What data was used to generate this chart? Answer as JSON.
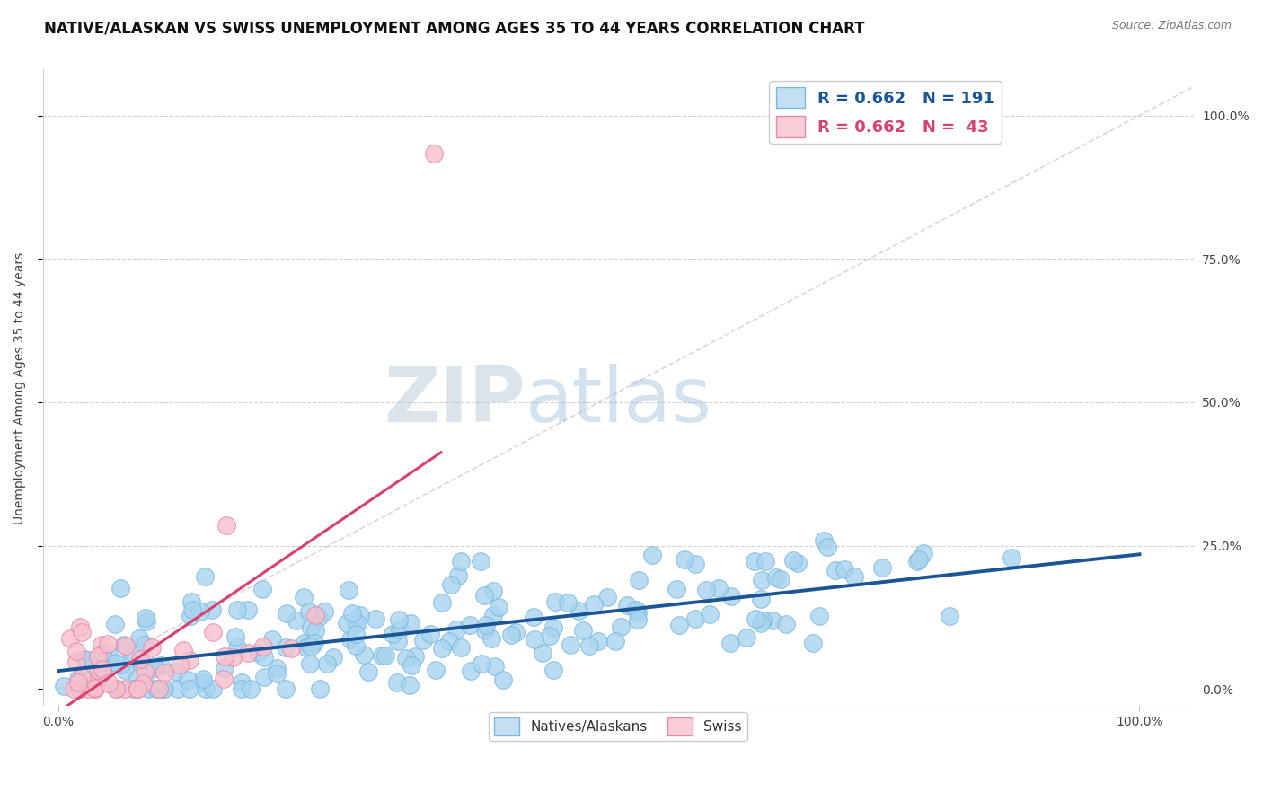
{
  "title": "NATIVE/ALASKAN VS SWISS UNEMPLOYMENT AMONG AGES 35 TO 44 YEARS CORRELATION CHART",
  "source": "Source: ZipAtlas.com",
  "ylabel": "Unemployment Among Ages 35 to 44 years",
  "y_tick_labels": [
    "0.0%",
    "25.0%",
    "50.0%",
    "75.0%",
    "100.0%"
  ],
  "y_tick_positions": [
    0,
    0.25,
    0.5,
    0.75,
    1.0
  ],
  "xlim": [
    -0.015,
    1.05
  ],
  "ylim": [
    -0.03,
    1.08
  ],
  "blue_scatter_color": "#a8d4ef",
  "blue_scatter_edge": "#7ab8de",
  "pink_scatter_color": "#f7bfcc",
  "pink_scatter_edge": "#e888a8",
  "blue_line_color": "#1a5596",
  "pink_line_color": "#d94070",
  "legend_blue_fill": "#c5dff2",
  "legend_pink_fill": "#f9cdd8",
  "legend_blue_edge": "#7ab8de",
  "legend_pink_edge": "#e888a8",
  "R_blue": "0.662",
  "N_blue": "191",
  "R_pink": "0.662",
  "N_pink": "43",
  "watermark_zip": "ZIP",
  "watermark_atlas": "atlas",
  "title_fontsize": 12,
  "label_fontsize": 10,
  "tick_fontsize": 10,
  "background_color": "#ffffff",
  "grid_color": "#d0d0d0",
  "ref_line_color": "#d8c0c8"
}
